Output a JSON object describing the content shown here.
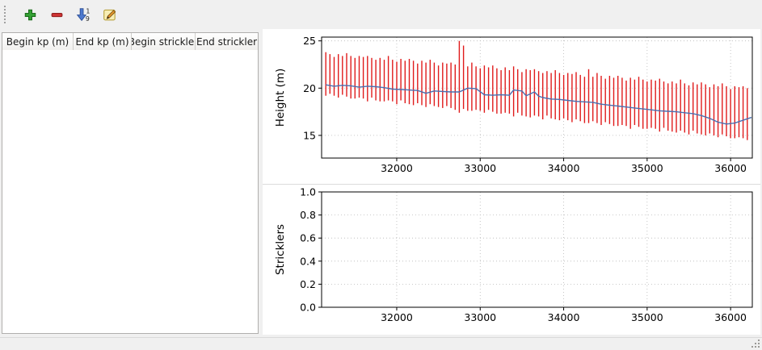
{
  "toolbar": {
    "buttons": [
      {
        "name": "add-row",
        "icon": "plus-icon"
      },
      {
        "name": "remove-row",
        "icon": "minus-icon"
      },
      {
        "name": "sort-rows",
        "icon": "sort-numeric-1-9-icon"
      },
      {
        "name": "edit-row",
        "icon": "edit-pencil-icon"
      }
    ]
  },
  "table": {
    "columns": [
      "Begin kp (m)",
      "End kp (m)",
      "Begin strickler",
      "End strickler"
    ],
    "rows": []
  },
  "colors": {
    "range_bars": "#e01b1b",
    "profile_line": "#4a6fb0",
    "grid": "#b8b8b8",
    "axes": "#000000",
    "window_background": "#f0f0f0"
  },
  "chart_data": [
    {
      "type": "line",
      "title": "",
      "xlabel": "",
      "ylabel": "Height (m)",
      "xlim": [
        31100,
        36260
      ],
      "ylim": [
        12.6,
        25.4
      ],
      "xticks": [
        32000,
        33000,
        34000,
        35000,
        36000
      ],
      "xtick_labels": [
        "32000",
        "33000",
        "34000",
        "35000",
        "36000"
      ],
      "yticks": [
        15,
        20,
        25
      ],
      "ytick_labels": [
        "15",
        "20",
        "25"
      ],
      "grid": true,
      "legend": "none",
      "series": [
        {
          "name": "cross-section-elevation-range",
          "type": "vertical-range",
          "color": "#e01b1b",
          "x": [
            31150,
            31200,
            31250,
            31300,
            31350,
            31400,
            31450,
            31500,
            31550,
            31600,
            31650,
            31700,
            31750,
            31800,
            31850,
            31900,
            31950,
            32000,
            32050,
            32100,
            32150,
            32200,
            32250,
            32300,
            32350,
            32400,
            32450,
            32500,
            32550,
            32600,
            32650,
            32700,
            32750,
            32800,
            32850,
            32900,
            32950,
            33000,
            33050,
            33100,
            33150,
            33200,
            33250,
            33300,
            33350,
            33400,
            33450,
            33500,
            33550,
            33600,
            33650,
            33700,
            33750,
            33800,
            33850,
            33900,
            33950,
            34000,
            34050,
            34100,
            34150,
            34200,
            34250,
            34300,
            34350,
            34400,
            34450,
            34500,
            34550,
            34600,
            34650,
            34700,
            34750,
            34800,
            34850,
            34900,
            34950,
            35000,
            35050,
            35100,
            35150,
            35200,
            35250,
            35300,
            35350,
            35400,
            35450,
            35500,
            35550,
            35600,
            35650,
            35700,
            35750,
            35800,
            35850,
            35900,
            35950,
            36000,
            36050,
            36100,
            36150,
            36200
          ],
          "top": [
            23.8,
            23.6,
            23.3,
            23.6,
            23.4,
            23.7,
            23.4,
            23.2,
            23.4,
            23.3,
            23.4,
            23.2,
            23.0,
            23.2,
            23.0,
            23.4,
            23.0,
            22.8,
            23.1,
            22.9,
            23.1,
            22.9,
            22.6,
            22.9,
            22.7,
            23.0,
            22.7,
            22.4,
            22.7,
            22.6,
            22.7,
            22.5,
            25.0,
            24.5,
            22.3,
            22.7,
            22.3,
            22.1,
            22.4,
            22.2,
            22.4,
            22.1,
            21.9,
            22.2,
            21.9,
            22.3,
            22.0,
            21.7,
            22.0,
            21.9,
            22.0,
            21.8,
            21.6,
            21.8,
            21.6,
            21.9,
            21.6,
            21.4,
            21.6,
            21.5,
            21.7,
            21.4,
            21.2,
            22.0,
            21.2,
            21.6,
            21.3,
            21.0,
            21.3,
            21.1,
            21.3,
            21.1,
            20.8,
            21.1,
            20.9,
            21.2,
            20.9,
            20.7,
            20.9,
            20.8,
            21.0,
            20.7,
            20.5,
            20.7,
            20.5,
            20.9,
            20.5,
            20.3,
            20.6,
            20.4,
            20.6,
            20.4,
            20.1,
            20.4,
            20.2,
            20.5,
            20.2,
            19.9,
            20.2,
            20.1,
            20.2,
            20.0
          ],
          "bottom": [
            19.2,
            19.4,
            19.2,
            19.0,
            19.3,
            19.1,
            18.9,
            18.9,
            19.0,
            18.9,
            18.6,
            19.0,
            18.7,
            18.6,
            18.6,
            18.7,
            18.6,
            18.3,
            18.7,
            18.4,
            18.3,
            18.2,
            18.4,
            18.2,
            18.0,
            18.3,
            18.1,
            18.0,
            17.9,
            18.1,
            17.9,
            17.7,
            17.4,
            17.8,
            17.6,
            17.6,
            17.7,
            17.6,
            17.4,
            17.7,
            17.5,
            17.3,
            17.3,
            17.4,
            17.3,
            17.0,
            17.4,
            17.1,
            17.0,
            16.9,
            17.1,
            17.0,
            16.7,
            17.1,
            16.8,
            16.7,
            16.6,
            16.8,
            16.6,
            16.4,
            16.7,
            16.5,
            16.3,
            16.3,
            16.5,
            16.3,
            16.1,
            16.4,
            16.2,
            16.0,
            16.0,
            16.1,
            16.0,
            15.7,
            16.1,
            15.9,
            15.7,
            15.7,
            15.8,
            15.7,
            15.4,
            15.8,
            15.5,
            15.4,
            15.3,
            15.5,
            15.3,
            15.1,
            15.5,
            15.2,
            15.1,
            15.0,
            15.2,
            15.0,
            14.8,
            15.1,
            14.9,
            14.7,
            14.7,
            14.8,
            14.7,
            14.5
          ]
        },
        {
          "name": "mean-bed-elevation",
          "type": "line",
          "color": "#4a6fb0",
          "x": [
            31150,
            31250,
            31350,
            31450,
            31550,
            31650,
            31750,
            31850,
            31950,
            32050,
            32150,
            32250,
            32350,
            32450,
            32550,
            32650,
            32750,
            32850,
            32950,
            33050,
            33150,
            33250,
            33350,
            33400,
            33500,
            33550,
            33650,
            33700,
            33750,
            33850,
            33950,
            34050,
            34150,
            34250,
            34350,
            34450,
            34550,
            34650,
            34750,
            34850,
            34950,
            35050,
            35150,
            35250,
            35350,
            35450,
            35550,
            35650,
            35750,
            35850,
            35950,
            36050,
            36150,
            36250
          ],
          "y": [
            20.35,
            20.2,
            20.3,
            20.25,
            20.1,
            20.2,
            20.15,
            20.05,
            19.9,
            19.85,
            19.8,
            19.75,
            19.45,
            19.7,
            19.65,
            19.6,
            19.6,
            20.0,
            19.95,
            19.3,
            19.25,
            19.3,
            19.25,
            19.8,
            19.7,
            19.2,
            19.6,
            19.15,
            19.0,
            18.85,
            18.8,
            18.7,
            18.6,
            18.55,
            18.5,
            18.3,
            18.2,
            18.1,
            18.0,
            17.9,
            17.8,
            17.7,
            17.6,
            17.55,
            17.5,
            17.4,
            17.3,
            17.1,
            16.8,
            16.4,
            16.2,
            16.3,
            16.6,
            16.9
          ]
        }
      ]
    },
    {
      "type": "line",
      "title": "",
      "xlabel": "",
      "ylabel": "Stricklers",
      "xlim": [
        31100,
        36260
      ],
      "ylim": [
        0.0,
        1.0
      ],
      "xticks": [
        32000,
        33000,
        34000,
        35000,
        36000
      ],
      "xtick_labels": [
        "32000",
        "33000",
        "34000",
        "35000",
        "36000"
      ],
      "yticks": [
        0.0,
        0.2,
        0.4,
        0.6,
        0.8,
        1.0
      ],
      "ytick_labels": [
        "0.0",
        "0.2",
        "0.4",
        "0.6",
        "0.8",
        "1.0"
      ],
      "grid": true,
      "legend": "none",
      "series": []
    }
  ]
}
